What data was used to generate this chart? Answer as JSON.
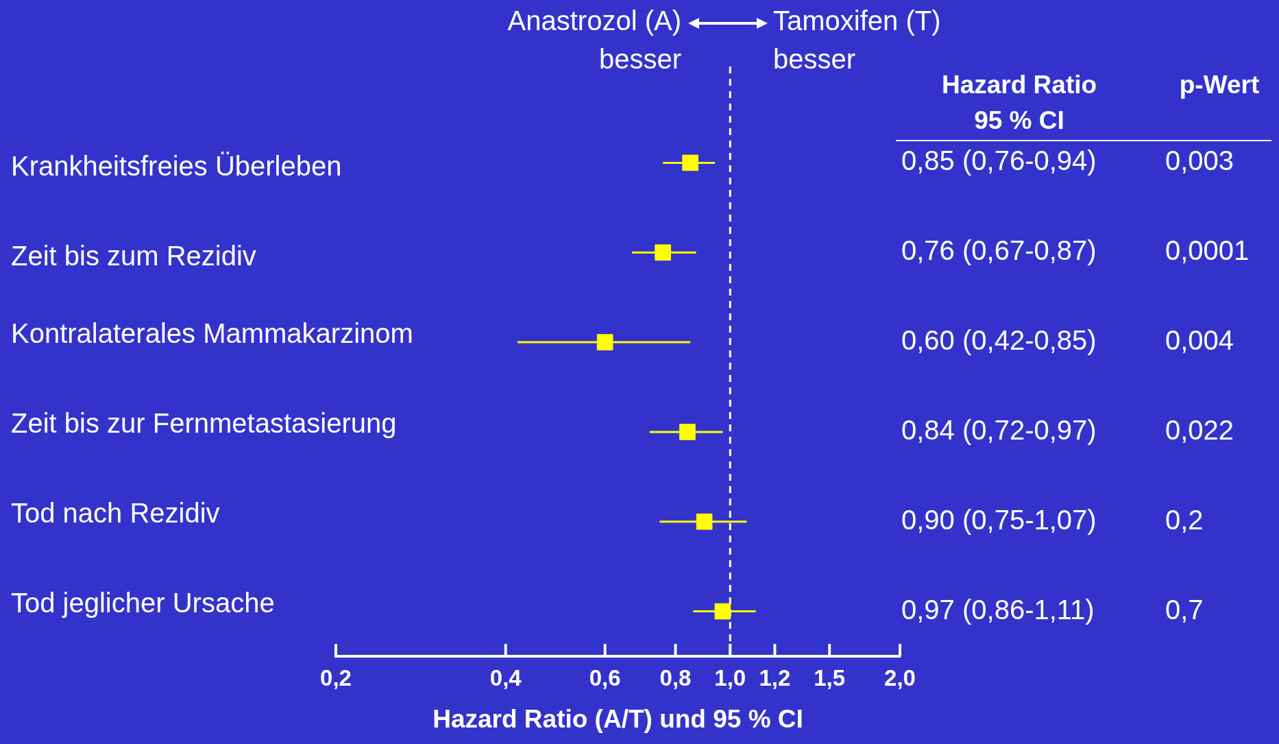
{
  "chart_data": {
    "type": "scatter",
    "orientation": "horizontal",
    "log": "x",
    "categories": [
      "Krankheitsfreies Überleben",
      "Zeit bis zum Rezidiv",
      "Kontralaterales Mammakarzinom",
      "Zeit bis zur Fernmetastasierung",
      "Tod nach Rezidiv",
      "Tod jeglicher Ursache"
    ],
    "values": [
      0.85,
      0.76,
      0.6,
      0.84,
      0.9,
      0.97
    ],
    "errors": [
      [
        0.76,
        0.94
      ],
      [
        0.67,
        0.87
      ],
      [
        0.42,
        0.85
      ],
      [
        0.72,
        0.97
      ],
      [
        0.75,
        1.07
      ],
      [
        0.86,
        1.11
      ]
    ],
    "value_labels": [
      "0,85 (0,76-0,94)",
      "0,76 (0,67-0,87)",
      "0,60 (0,42-0,85)",
      "0,84 (0,72-0,97)",
      "0,90 (0,75-1,07)",
      "0,97 (0,86-1,11)"
    ],
    "color": "#ffff00",
    "marker": "square",
    "grid": false,
    "legend": false,
    "xlim": [
      0.2,
      2.0
    ],
    "xticks": [
      {
        "value": 0.2,
        "label": "0,2"
      },
      {
        "value": 0.4,
        "label": "0,4"
      },
      {
        "value": 0.6,
        "label": "0,6"
      },
      {
        "value": 0.8,
        "label": "0,8"
      },
      {
        "value": 1.0,
        "label": "1,0"
      },
      {
        "value": 1.2,
        "label": "1,2"
      },
      {
        "value": 1.5,
        "label": "1,5"
      },
      {
        "value": 2.0,
        "label": "2,0"
      }
    ],
    "xlabel": "Hazard Ratio (A/T) und 95 % CI",
    "ref_lines": [
      {
        "axis": "x",
        "value": 1.0,
        "color": "#ffffff",
        "line_style": "dashed"
      }
    ],
    "annotations": [
      "Anastrozol (A)\nbesser",
      "Tamoxifen (T)\nbesser",
      "Hazard Ratio\n95 % CI",
      "p-Wert",
      "0,003",
      "0,0001",
      "0,004",
      "0,022",
      "0,2",
      "0,7"
    ]
  }
}
